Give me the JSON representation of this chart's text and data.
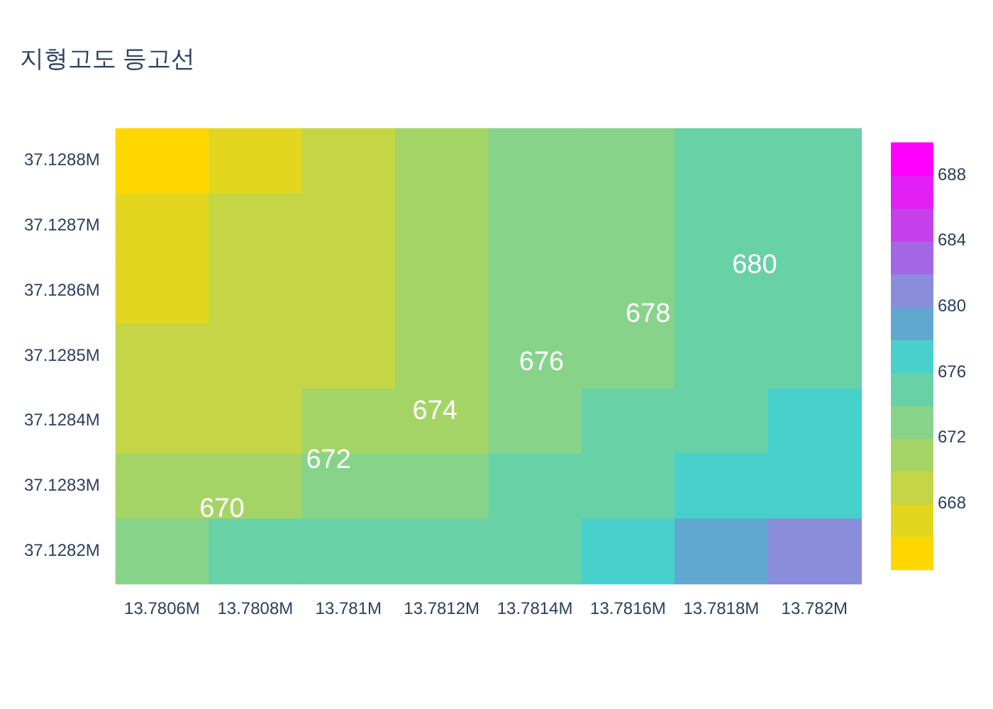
{
  "chart_data": {
    "type": "heatmap",
    "title": "지형고도 등고선",
    "categories": [
      "13.7806M",
      "13.7808M",
      "13.781M",
      "13.7812M",
      "13.7814M",
      "13.7816M",
      "13.7818M",
      "13.782M"
    ],
    "y_categories": [
      "37.1288M",
      "37.1287M",
      "37.1286M",
      "37.1285M",
      "37.1284M",
      "37.1283M",
      "37.1282M"
    ],
    "cells": [
      [
        665,
        667,
        669,
        671,
        673,
        673,
        675,
        675
      ],
      [
        667,
        669,
        669,
        671,
        673,
        673,
        675,
        675
      ],
      [
        667,
        669,
        669,
        671,
        673,
        673,
        675,
        675
      ],
      [
        669,
        669,
        669,
        671,
        673,
        673,
        675,
        675
      ],
      [
        669,
        669,
        671,
        671,
        673,
        675,
        675,
        677
      ],
      [
        671,
        671,
        673,
        673,
        675,
        675,
        677,
        677
      ],
      [
        673,
        675,
        675,
        675,
        675,
        677,
        679,
        681
      ]
    ],
    "clim": [
      664,
      690
    ],
    "cticks": [
      668,
      672,
      676,
      680,
      684,
      688
    ],
    "annotations": [
      "670",
      "672",
      "674",
      "676",
      "678",
      "680"
    ]
  }
}
